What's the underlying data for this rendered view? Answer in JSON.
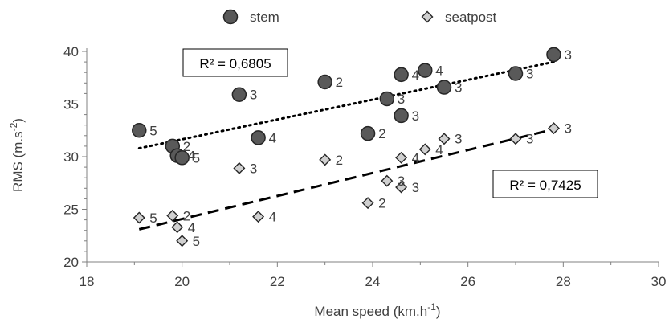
{
  "chart_data": {
    "type": "scatter",
    "title": "",
    "xlabel": {
      "base": "Mean speed (km.h",
      "sup": "-1",
      "end": ")"
    },
    "ylabel": {
      "base": "RMS (m.s",
      "sup": "-2",
      "end": ")"
    },
    "xlim": [
      18,
      30
    ],
    "ylim": [
      20,
      40
    ],
    "xticks": [
      18,
      20,
      22,
      24,
      26,
      28,
      30
    ],
    "yticks": [
      20,
      25,
      30,
      35,
      40
    ],
    "grid": false,
    "legend_position": "top",
    "colors": {
      "stem_fill": "#595959",
      "seatpost_fill": "#d0d0d0",
      "marker_stroke": "#262626",
      "trend": "#000000",
      "axis": "#808080"
    },
    "series": [
      {
        "name": "stem",
        "marker": "circle",
        "points": [
          {
            "x": 19.1,
            "y": 32.5,
            "label": "5"
          },
          {
            "x": 19.8,
            "y": 31.0,
            "label": "2"
          },
          {
            "x": 19.9,
            "y": 30.1,
            "label": "4"
          },
          {
            "x": 20.0,
            "y": 29.9,
            "label": "5"
          },
          {
            "x": 21.2,
            "y": 35.9,
            "label": "3"
          },
          {
            "x": 21.6,
            "y": 31.8,
            "label": "4"
          },
          {
            "x": 23.0,
            "y": 37.1,
            "label": "2"
          },
          {
            "x": 23.9,
            "y": 32.2,
            "label": "2"
          },
          {
            "x": 24.3,
            "y": 35.5,
            "label": "3"
          },
          {
            "x": 24.6,
            "y": 37.8,
            "label": "4"
          },
          {
            "x": 24.6,
            "y": 33.9,
            "label": "3"
          },
          {
            "x": 25.1,
            "y": 38.2,
            "label": "4"
          },
          {
            "x": 25.5,
            "y": 36.6,
            "label": "3"
          },
          {
            "x": 27.0,
            "y": 37.9,
            "label": "3"
          },
          {
            "x": 27.8,
            "y": 39.7,
            "label": "3"
          }
        ],
        "trendline": {
          "style": "dotted",
          "x": [
            19.1,
            27.8
          ],
          "y": [
            30.8,
            39.0
          ],
          "r2_text": "R² = 0,6805"
        }
      },
      {
        "name": "seatpost",
        "marker": "diamond",
        "points": [
          {
            "x": 19.1,
            "y": 24.2,
            "label": "5"
          },
          {
            "x": 19.8,
            "y": 24.4,
            "label": "2"
          },
          {
            "x": 19.9,
            "y": 23.3,
            "label": "4"
          },
          {
            "x": 20.0,
            "y": 22.0,
            "label": "5"
          },
          {
            "x": 21.2,
            "y": 28.9,
            "label": "3"
          },
          {
            "x": 21.6,
            "y": 24.3,
            "label": "4"
          },
          {
            "x": 23.0,
            "y": 29.7,
            "label": "2"
          },
          {
            "x": 23.9,
            "y": 25.6,
            "label": "2"
          },
          {
            "x": 24.3,
            "y": 27.7,
            "label": "3"
          },
          {
            "x": 24.6,
            "y": 29.9,
            "label": "4"
          },
          {
            "x": 24.6,
            "y": 27.1,
            "label": "3"
          },
          {
            "x": 25.1,
            "y": 30.7,
            "label": "4"
          },
          {
            "x": 25.5,
            "y": 31.7,
            "label": "3"
          },
          {
            "x": 27.0,
            "y": 31.7,
            "label": "3"
          },
          {
            "x": 27.8,
            "y": 32.7,
            "label": "3"
          }
        ],
        "trendline": {
          "style": "dashed",
          "x": [
            19.1,
            27.8
          ],
          "y": [
            23.1,
            32.6
          ],
          "r2_text": "R² = 0,7425"
        }
      }
    ]
  }
}
